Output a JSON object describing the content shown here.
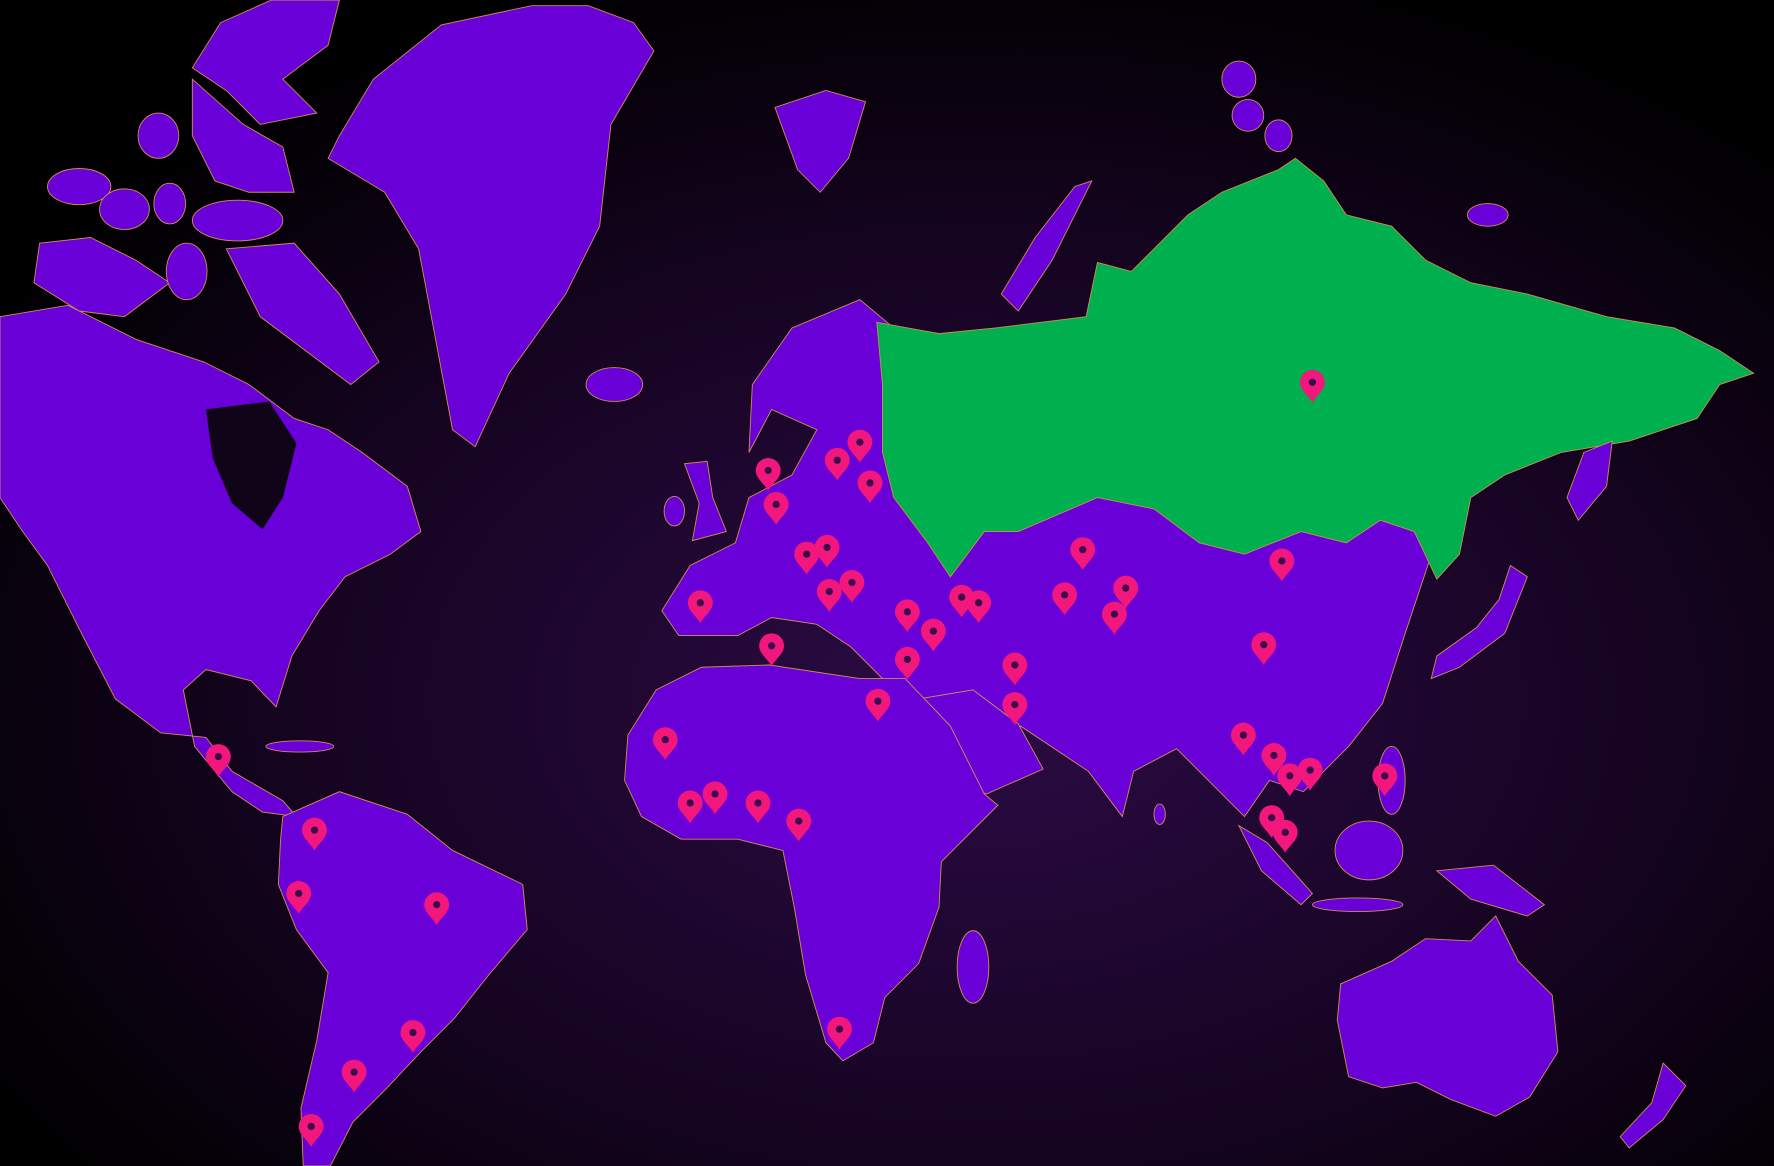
{
  "map": {
    "land_color": "#6a00d8",
    "highlight_color": "#00b04f",
    "marker_color": "#f2177c",
    "border_color": "#c99050"
  }
}
